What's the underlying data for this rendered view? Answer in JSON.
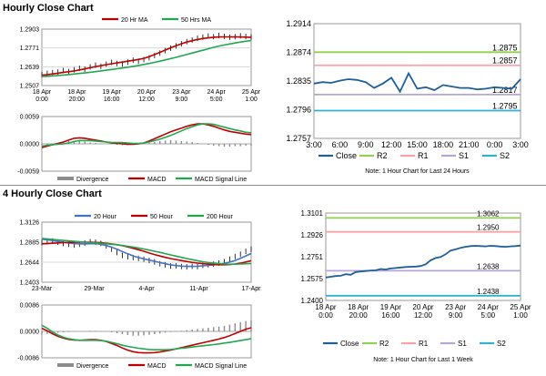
{
  "sections": {
    "hourly_title": "Hourly Close Chart",
    "four_hourly_title": "4 Hourly Close Chart"
  },
  "colors": {
    "close": "#1f5f99",
    "ma_red": "#c00000",
    "ma_green": "#22a650",
    "ma_blue": "#4472c4",
    "price_black": "#000000",
    "r2": "#92d050",
    "r1": "#f4a6a6",
    "s1": "#b4a7d6",
    "s2": "#31b2d4",
    "divergence": "#8c8c8c"
  },
  "chart_data": [
    {
      "id": "hourly_price_ma",
      "type": "line",
      "legend": [
        "20 Hr MA",
        "50 Hrs MA"
      ],
      "x_labels": [
        "18 Apr\n0:00",
        "18 Apr\n20:00",
        "19 Apr\n16:00",
        "20 Apr\n12:00",
        "23 Apr\n9:00",
        "24 Apr\n5:00",
        "25 Apr\n1:00"
      ],
      "y_ticks": [
        "1.2903",
        "1.2771",
        "1.2639",
        "1.2507"
      ],
      "ylim": [
        1.2507,
        1.2903
      ],
      "series": [
        {
          "name": "Price",
          "style": "bars",
          "values": [
            1.2585,
            1.2592,
            1.2598,
            1.2602,
            1.2612,
            1.2605,
            1.2617,
            1.2628,
            1.2622,
            1.2638,
            1.265,
            1.2642,
            1.2657,
            1.267,
            1.2663,
            1.2658,
            1.2671,
            1.2685,
            1.2678,
            1.269,
            1.2702,
            1.2718,
            1.2735,
            1.2752,
            1.277,
            1.2786,
            1.28,
            1.2815,
            1.2826,
            1.2838,
            1.2847,
            1.2855,
            1.285,
            1.2858,
            1.2852,
            1.2846,
            1.285,
            1.2856,
            1.2851,
            1.2848
          ]
        },
        {
          "name": "20 Hr MA",
          "values": [
            1.258,
            1.2583,
            1.2589,
            1.2594,
            1.26,
            1.2604,
            1.261,
            1.2617,
            1.2624,
            1.2632,
            1.264,
            1.2647,
            1.2654,
            1.266,
            1.2666,
            1.2672,
            1.2678,
            1.2684,
            1.269,
            1.2698,
            1.271,
            1.2725,
            1.274,
            1.2756,
            1.2772,
            1.2787,
            1.28,
            1.2812,
            1.2822,
            1.283,
            1.2837,
            1.2842,
            1.2846,
            1.2848,
            1.2849,
            1.2849,
            1.2848,
            1.2848,
            1.2847,
            1.2846
          ]
        },
        {
          "name": "50 Hrs MA",
          "values": [
            1.257,
            1.2572,
            1.2575,
            1.2578,
            1.2581,
            1.2584,
            1.2588,
            1.2592,
            1.2596,
            1.26,
            1.2605,
            1.261,
            1.2615,
            1.262,
            1.2625,
            1.263,
            1.2636,
            1.2642,
            1.2648,
            1.2655,
            1.2662,
            1.267,
            1.2678,
            1.2687,
            1.2696,
            1.2705,
            1.2715,
            1.2725,
            1.2735,
            1.2745,
            1.2755,
            1.2765,
            1.2775,
            1.2784,
            1.2792,
            1.2799,
            1.2806,
            1.2812,
            1.2818,
            1.2823
          ]
        }
      ]
    },
    {
      "id": "hourly_macd",
      "type": "line",
      "legend": [
        "Divergence",
        "MACD",
        "MACD Signal Line"
      ],
      "y_ticks": [
        "0.0059",
        "0.0000",
        "-0.0059"
      ],
      "ylim": [
        -0.0059,
        0.0059
      ],
      "series": [
        {
          "name": "Divergence",
          "style": "bars",
          "values": [
            -0.0003,
            -0.0002,
            0.0,
            0.0002,
            0.0004,
            0.0006,
            0.0007,
            0.0006,
            0.0005,
            0.0003,
            0.0002,
            0.0001,
            0.0,
            -0.0001,
            -0.0002,
            -0.0003,
            -0.0003,
            -0.0002,
            -0.0001,
            0.0,
            0.0002,
            0.0004,
            0.0006,
            0.0007,
            0.0008,
            0.0007,
            0.0006,
            0.0005,
            0.0004,
            0.0002,
            0.0,
            -0.0002,
            -0.0004,
            -0.0005,
            -0.0006,
            -0.0006,
            -0.0005,
            -0.0005,
            -0.0004,
            -0.0004
          ]
        },
        {
          "name": "MACD",
          "values": [
            -0.0008,
            -0.0005,
            -0.0002,
            0.0001,
            0.0004,
            0.0008,
            0.0012,
            0.0013,
            0.0012,
            0.001,
            0.0008,
            0.0006,
            0.0004,
            0.0002,
            0.0001,
            0.0,
            -0.0001,
            -0.0001,
            0.0,
            0.0002,
            0.0006,
            0.0011,
            0.0016,
            0.0021,
            0.0026,
            0.003,
            0.0034,
            0.0038,
            0.0041,
            0.0043,
            0.0043,
            0.0041,
            0.0038,
            0.0034,
            0.003,
            0.0027,
            0.0025,
            0.0023,
            0.0021,
            0.002
          ]
        },
        {
          "name": "MACD Signal Line",
          "values": [
            -0.0005,
            -0.0003,
            -0.0002,
            -0.0001,
            0.0,
            0.0002,
            0.0005,
            0.0007,
            0.0007,
            0.0007,
            0.0006,
            0.0005,
            0.0004,
            0.0003,
            0.0003,
            0.0003,
            0.0002,
            0.0001,
            0.0001,
            0.0002,
            0.0004,
            0.0007,
            0.001,
            0.0014,
            0.0018,
            0.0023,
            0.0028,
            0.0033,
            0.0037,
            0.0041,
            0.0043,
            0.0043,
            0.0042,
            0.0039,
            0.0036,
            0.0033,
            0.003,
            0.0028,
            0.0025,
            0.0024
          ]
        }
      ]
    },
    {
      "id": "hourly_close",
      "type": "line",
      "x_labels": [
        "3:00",
        "6:00",
        "9:00",
        "12:00",
        "15:00",
        "18:00",
        "21:00",
        "0:00",
        "3:00"
      ],
      "y_ticks": [
        "1.2914",
        "1.2874",
        "1.2835",
        "1.2796",
        "1.2757"
      ],
      "ylim": [
        1.2757,
        1.2914
      ],
      "levels": [
        {
          "name": "R2",
          "value": 1.2875,
          "label": "1.2875"
        },
        {
          "name": "R1",
          "value": 1.2857,
          "label": "1.2857"
        },
        {
          "name": "S1",
          "value": 1.2817,
          "label": "1.2817"
        },
        {
          "name": "S2",
          "value": 1.2795,
          "label": "1.2795"
        }
      ],
      "series": [
        {
          "name": "Close",
          "values": [
            1.2832,
            1.2834,
            1.2833,
            1.2836,
            1.2838,
            1.2837,
            1.2834,
            1.2826,
            1.2832,
            1.284,
            1.2821,
            1.2846,
            1.2825,
            1.2827,
            1.2823,
            1.283,
            1.2828,
            1.2826,
            1.2826,
            1.2824,
            1.2825,
            1.2827,
            1.2826,
            1.2825,
            1.2838
          ]
        }
      ],
      "legend": [
        "Close",
        "R2",
        "R1",
        "S1",
        "S2"
      ],
      "note": "Note: 1 Hour Chart for Last 24 Hours"
    },
    {
      "id": "four_hourly_price_ma",
      "type": "line",
      "legend": [
        "20 Hour",
        "50 Hour",
        "200 Hour"
      ],
      "x_labels": [
        "23-Mar",
        "29-Mar",
        "4-Apr",
        "11-Apr",
        "17-Apr"
      ],
      "y_ticks": [
        "1.3126",
        "1.2885",
        "1.2644",
        "1.2403"
      ],
      "ylim": [
        1.2403,
        1.3126
      ],
      "series": [
        {
          "name": "Price",
          "style": "bars",
          "values": [
            1.288,
            1.289,
            1.29,
            1.2885,
            1.287,
            1.286,
            1.285,
            1.286,
            1.2875,
            1.289,
            1.2885,
            1.287,
            1.284,
            1.28,
            1.276,
            1.2725,
            1.271,
            1.27,
            1.269,
            1.268,
            1.2665,
            1.2648,
            1.2625,
            1.2612,
            1.2598,
            1.26,
            1.2592,
            1.2588,
            1.2595,
            1.259,
            1.2605,
            1.2612,
            1.262,
            1.2634,
            1.265,
            1.268,
            1.2712,
            1.274,
            1.2775,
            1.28
          ]
        },
        {
          "name": "20 Hour",
          "values": [
            1.292,
            1.2915,
            1.2905,
            1.2895,
            1.2885,
            1.2875,
            1.2868,
            1.2865,
            1.2864,
            1.2866,
            1.2868,
            1.286,
            1.2845,
            1.2825,
            1.28,
            1.2772,
            1.2745,
            1.272,
            1.27,
            1.2684,
            1.267,
            1.2655,
            1.264,
            1.2625,
            1.2612,
            1.2603,
            1.2597,
            1.2594,
            1.2594,
            1.2596,
            1.26,
            1.2606,
            1.2612,
            1.262,
            1.263,
            1.2645,
            1.2665,
            1.269,
            1.272,
            1.2748
          ]
        },
        {
          "name": "50 Hour",
          "values": [
            1.2865,
            1.2868,
            1.2872,
            1.2876,
            1.288,
            1.2882,
            1.2884,
            1.2885,
            1.2885,
            1.2884,
            1.2882,
            1.2878,
            1.2872,
            1.2864,
            1.2854,
            1.2842,
            1.2828,
            1.2812,
            1.2794,
            1.2775,
            1.2755,
            1.2736,
            1.2718,
            1.2702,
            1.2688,
            1.2676,
            1.2664,
            1.2653,
            1.2642,
            1.2633,
            1.2626,
            1.262,
            1.2616,
            1.2613,
            1.2613,
            1.2616,
            1.2622,
            1.2632,
            1.2646,
            1.2662
          ]
        },
        {
          "name": "200 Hour",
          "values": [
            1.293,
            1.2924,
            1.2918,
            1.2912,
            1.2906,
            1.29,
            1.2895,
            1.289,
            1.2885,
            1.288,
            1.2876,
            1.2871,
            1.2866,
            1.286,
            1.2853,
            1.2845,
            1.2836,
            1.2826,
            1.2815,
            1.2803,
            1.279,
            1.2776,
            1.2762,
            1.2747,
            1.2732,
            1.2717,
            1.2702,
            1.2688,
            1.2675,
            1.2662,
            1.265,
            1.264,
            1.2632,
            1.2626,
            1.2622,
            1.262,
            1.262,
            1.2622,
            1.2625,
            1.2628
          ]
        }
      ]
    },
    {
      "id": "four_hourly_macd",
      "type": "line",
      "legend": [
        "Divergence",
        "MACD",
        "MACD Signal Line"
      ],
      "y_ticks": [
        "0.0086",
        "0.0000",
        "-0.0086"
      ],
      "ylim": [
        -0.0086,
        0.0086
      ],
      "series": [
        {
          "name": "Divergence",
          "style": "bars",
          "values": [
            -0.001,
            -0.0008,
            -0.0006,
            -0.0004,
            -0.0003,
            -0.0002,
            -0.0001,
            0.0,
            0.0001,
            0.0002,
            0.0002,
            0.0001,
            -0.0001,
            -0.0003,
            -0.0006,
            -0.0009,
            -0.0012,
            -0.0014,
            -0.0014,
            -0.0013,
            -0.0011,
            -0.0009,
            -0.0007,
            -0.0004,
            -0.0002,
            0.0,
            0.0002,
            0.0004,
            0.0006,
            0.0008,
            0.001,
            0.0012,
            0.0014,
            0.0016,
            0.0018,
            0.0022,
            0.0026,
            0.003,
            0.0034,
            0.0036
          ]
        },
        {
          "name": "MACD",
          "values": [
            0.001,
            0.0002,
            -0.0008,
            -0.0016,
            -0.0022,
            -0.0026,
            -0.0028,
            -0.0029,
            -0.0028,
            -0.0027,
            -0.0027,
            -0.0029,
            -0.0033,
            -0.0039,
            -0.0046,
            -0.0054,
            -0.0061,
            -0.0066,
            -0.0069,
            -0.007,
            -0.007,
            -0.0069,
            -0.0067,
            -0.0064,
            -0.0061,
            -0.0057,
            -0.0053,
            -0.0049,
            -0.0045,
            -0.0041,
            -0.0037,
            -0.0033,
            -0.0029,
            -0.0025,
            -0.002,
            -0.0014,
            -0.0007,
            0.0,
            0.0007,
            0.0012
          ]
        },
        {
          "name": "MACD Signal Line",
          "values": [
            0.002,
            0.001,
            -0.0002,
            -0.0012,
            -0.0019,
            -0.0024,
            -0.0027,
            -0.0029,
            -0.0029,
            -0.0029,
            -0.0029,
            -0.003,
            -0.0032,
            -0.0036,
            -0.004,
            -0.0045,
            -0.0049,
            -0.0052,
            -0.0055,
            -0.0057,
            -0.0059,
            -0.006,
            -0.006,
            -0.006,
            -0.0059,
            -0.0057,
            -0.0055,
            -0.0053,
            -0.0051,
            -0.0049,
            -0.0047,
            -0.0045,
            -0.0043,
            -0.0041,
            -0.0038,
            -0.0036,
            -0.0033,
            -0.003,
            -0.0027,
            -0.0024
          ]
        }
      ]
    },
    {
      "id": "four_hourly_close",
      "type": "line",
      "x_labels": [
        "18 Apr\n0:00",
        "18 Apr\n20:00",
        "19 Apr\n16:00",
        "20 Apr\n12:00",
        "23 Apr\n9:00",
        "24 Apr\n5:00",
        "25 Apr\n1:00"
      ],
      "y_ticks": [
        "1.3101",
        "1.2926",
        "1.2751",
        "1.2575",
        "1.2400"
      ],
      "ylim": [
        1.24,
        1.3101
      ],
      "levels": [
        {
          "name": "R2",
          "value": 1.3062,
          "label": "1.3062"
        },
        {
          "name": "R1",
          "value": 1.295,
          "label": "1.2950"
        },
        {
          "name": "S1",
          "value": 1.2638,
          "label": "1.2638"
        },
        {
          "name": "S2",
          "value": 1.2438,
          "label": "1.2438"
        }
      ],
      "series": [
        {
          "name": "Close",
          "values": [
            1.2584,
            1.259,
            1.2596,
            1.2598,
            1.261,
            1.2606,
            1.2628,
            1.2632,
            1.2636,
            1.264,
            1.2642,
            1.2652,
            1.2648,
            1.2656,
            1.266,
            1.2664,
            1.2668,
            1.267,
            1.2672,
            1.2676,
            1.269,
            1.2722,
            1.274,
            1.2748,
            1.277,
            1.28,
            1.281,
            1.2822,
            1.283,
            1.2836,
            1.2838,
            1.2836,
            1.2834,
            1.2838,
            1.2836,
            1.2832,
            1.283,
            1.2834,
            1.2836,
            1.284
          ]
        }
      ],
      "legend": [
        "Close",
        "R2",
        "R1",
        "S1",
        "S2"
      ],
      "note": "Note: 1 Hour Chart for Last 1 Week"
    }
  ]
}
